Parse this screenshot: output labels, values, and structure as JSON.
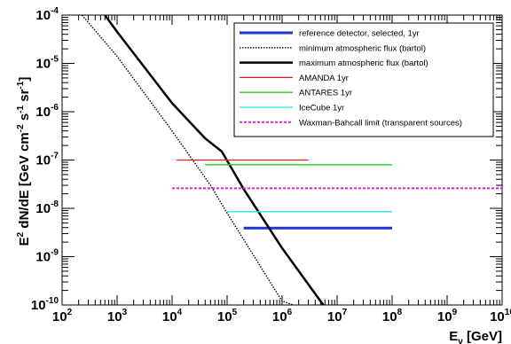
{
  "chart_data": {
    "type": "line",
    "xscale": "log",
    "yscale": "log",
    "xlim": [
      100,
      10000000000
    ],
    "ylim": [
      1e-10,
      0.0001
    ],
    "x_tick_exponents": [
      "2",
      "3",
      "4",
      "5",
      "6",
      "7",
      "8",
      "9",
      "10"
    ],
    "y_tick_exponents": [
      "-10",
      "-9",
      "-8",
      "-7",
      "-6",
      "-5",
      "-4"
    ],
    "tick_base": "10",
    "xlabel": {
      "main": "E",
      "sub": "ν",
      "unit": " [GeV]"
    },
    "ylabel": {
      "prefix": "E",
      "prefix_sup": "2",
      "mid": " dN/dE [GeV cm",
      "cm_sup": "-2",
      "s": " s",
      "s_sup": "-1",
      "sr": " sr",
      "sr_sup": "-1",
      "end": "]"
    },
    "legend_position": "top-right",
    "series": [
      {
        "name": "reference detector, selected, 1yr",
        "color": "#1f33d6",
        "width": 3,
        "dash": "",
        "x": [
          200000,
          100000000
        ],
        "y": [
          3.9e-09,
          3.9e-09
        ]
      },
      {
        "name": "minimum atmospheric flux (bartol)",
        "color": "#000000",
        "width": 1.4,
        "dash": "1.5,1.5",
        "x": [
          230,
          1000,
          10000,
          50000,
          100000,
          1000000,
          1600000
        ],
        "y": [
          0.0001,
          1.4e-05,
          4e-07,
          3e-08,
          8e-09,
          1.2e-10,
          1e-10
        ]
      },
      {
        "name": "maximum atmospheric flux (bartol)",
        "color": "#000000",
        "width": 2.5,
        "dash": "",
        "x": [
          600,
          1000,
          10000,
          40000,
          80000,
          200000,
          1000000,
          5600000
        ],
        "y": [
          0.0001,
          4.5e-05,
          1.5e-06,
          2.8e-07,
          1.5e-07,
          2.5e-08,
          1.5e-09,
          1e-10
        ]
      },
      {
        "name": "AMANDA 1yr",
        "color": "#e02020",
        "width": 1.3,
        "dash": "",
        "x": [
          12000,
          3000000
        ],
        "y": [
          1e-07,
          1e-07
        ]
      },
      {
        "name": "ANTARES 1yr",
        "color": "#22cc22",
        "width": 1.3,
        "dash": "",
        "x": [
          40000,
          100000000
        ],
        "y": [
          8e-08,
          8e-08
        ]
      },
      {
        "name": "IceCube 1yr",
        "color": "#22e6e6",
        "width": 1.3,
        "dash": "",
        "x": [
          100000,
          100000000
        ],
        "y": [
          8.5e-09,
          8.5e-09
        ]
      },
      {
        "name": "Waxman-Bahcall limit (transparent sources)",
        "color": "#e020e0",
        "width": 2,
        "dash": "3,2",
        "x": [
          10000,
          10000000000
        ],
        "y": [
          2.6e-08,
          2.6e-08
        ]
      }
    ]
  }
}
